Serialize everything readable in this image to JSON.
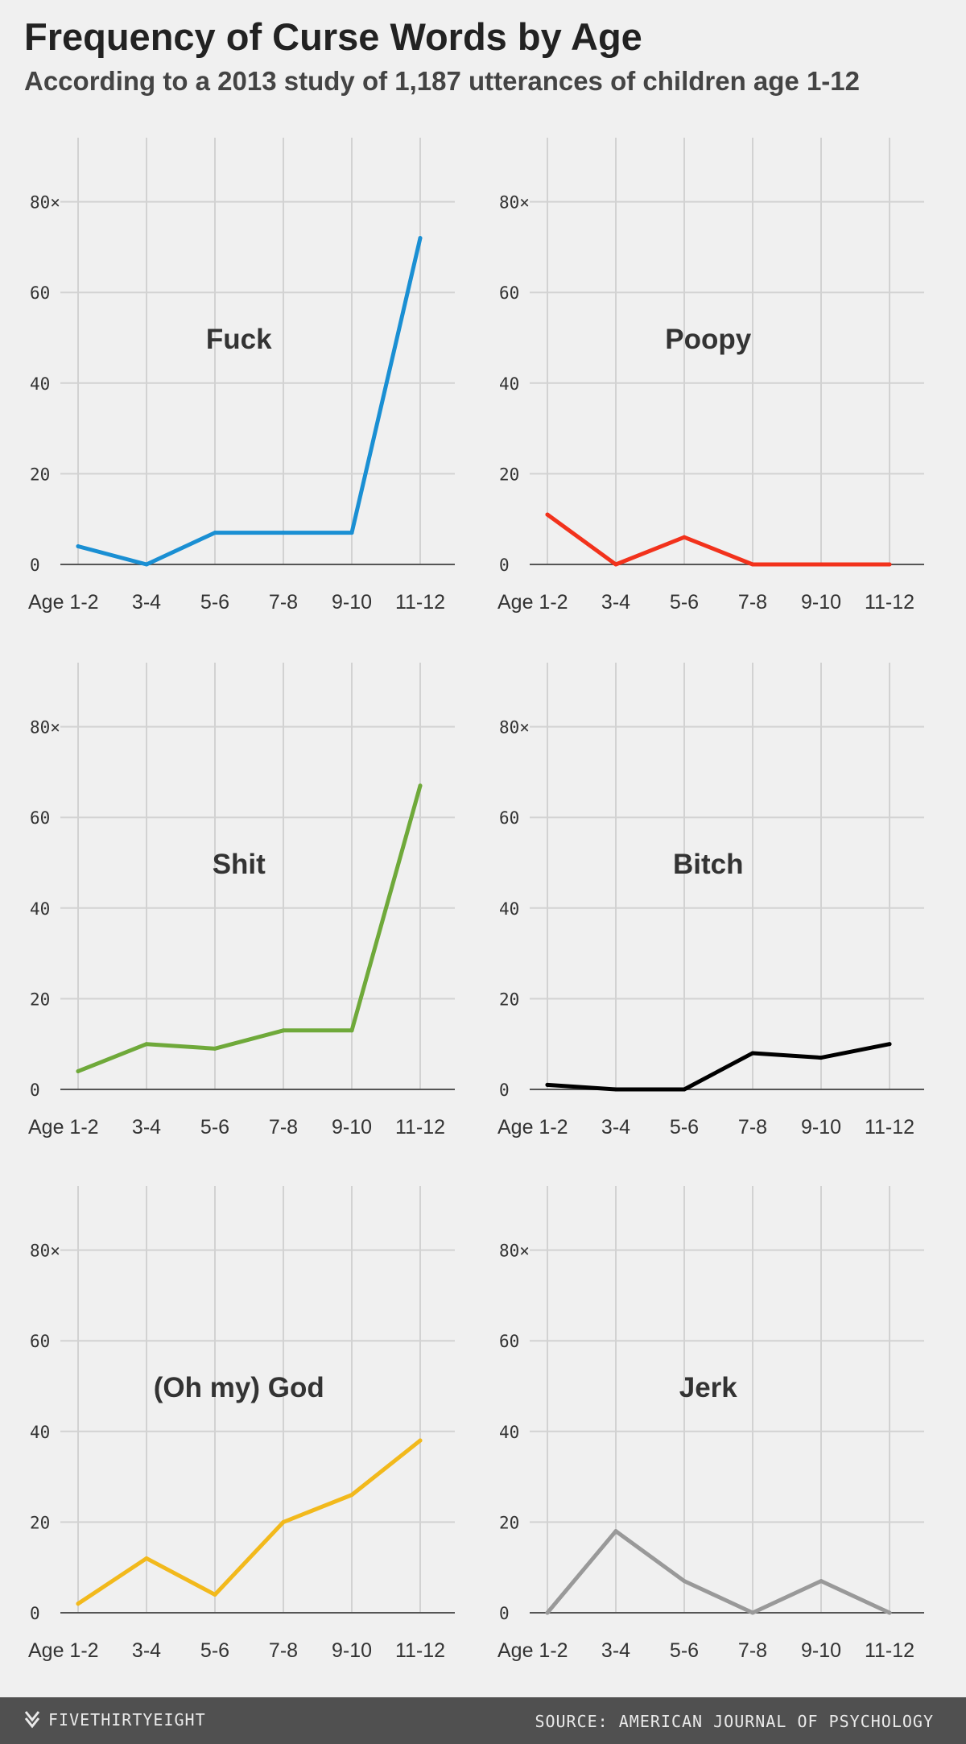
{
  "header": {
    "title": "Frequency of Curse Words by Age",
    "subtitle": "According to a 2013 study of 1,187 utterances of children age 1-12"
  },
  "footer": {
    "brand": "FIVETHIRTYEIGHT",
    "brand_icon": "fivethirtyeight-logo-icon",
    "source": "SOURCE: AMERICAN JOURNAL OF PSYCHOLOGY"
  },
  "chart_data": [
    {
      "type": "line",
      "title": "Fuck",
      "color": "#1a8fd3",
      "categories": [
        "Age 1-2",
        "3-4",
        "5-6",
        "7-8",
        "9-10",
        "11-12"
      ],
      "values": [
        4,
        0,
        7,
        7,
        7,
        72
      ],
      "yticks": [
        "0",
        "20",
        "40",
        "60",
        "80×"
      ],
      "ylim": [
        0,
        80
      ],
      "grid": true
    },
    {
      "type": "line",
      "title": "Poopy",
      "color": "#f2321c",
      "categories": [
        "Age 1-2",
        "3-4",
        "5-6",
        "7-8",
        "9-10",
        "11-12"
      ],
      "values": [
        11,
        0,
        6,
        0,
        0,
        0
      ],
      "yticks": [
        "0",
        "20",
        "40",
        "60",
        "80×"
      ],
      "ylim": [
        0,
        80
      ],
      "grid": true
    },
    {
      "type": "line",
      "title": "Shit",
      "color": "#6fa93a",
      "categories": [
        "Age 1-2",
        "3-4",
        "5-6",
        "7-8",
        "9-10",
        "11-12"
      ],
      "values": [
        4,
        10,
        9,
        13,
        13,
        67
      ],
      "yticks": [
        "0",
        "20",
        "40",
        "60",
        "80×"
      ],
      "ylim": [
        0,
        80
      ],
      "grid": true
    },
    {
      "type": "line",
      "title": "Bitch",
      "color": "#000000",
      "categories": [
        "Age 1-2",
        "3-4",
        "5-6",
        "7-8",
        "9-10",
        "11-12"
      ],
      "values": [
        1,
        0,
        0,
        8,
        7,
        10
      ],
      "yticks": [
        "0",
        "20",
        "40",
        "60",
        "80×"
      ],
      "ylim": [
        0,
        80
      ],
      "grid": true
    },
    {
      "type": "line",
      "title": "(Oh my) God",
      "color": "#f2b91c",
      "categories": [
        "Age 1-2",
        "3-4",
        "5-6",
        "7-8",
        "9-10",
        "11-12"
      ],
      "values": [
        2,
        12,
        4,
        20,
        26,
        38
      ],
      "yticks": [
        "0",
        "20",
        "40",
        "60",
        "80×"
      ],
      "ylim": [
        0,
        80
      ],
      "grid": true
    },
    {
      "type": "line",
      "title": "Jerk",
      "color": "#999999",
      "categories": [
        "Age 1-2",
        "3-4",
        "5-6",
        "7-8",
        "9-10",
        "11-12"
      ],
      "values": [
        0,
        18,
        7,
        0,
        7,
        0
      ],
      "yticks": [
        "0",
        "20",
        "40",
        "60",
        "80×"
      ],
      "ylim": [
        0,
        80
      ],
      "grid": true
    }
  ]
}
